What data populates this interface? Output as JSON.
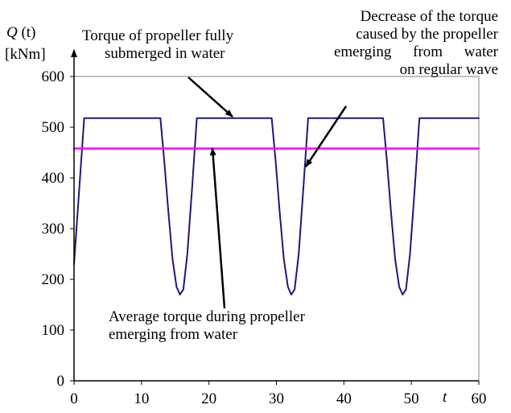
{
  "chart_data": {
    "type": "line",
    "ylabel_symbol": "Q",
    "ylabel_arg": "(t)",
    "ylabel_unit": "[kNm]",
    "xlabel": "t",
    "xlim": [
      0,
      60
    ],
    "ylim": [
      0,
      600
    ],
    "xticks": [
      0,
      10,
      20,
      30,
      40,
      50,
      60
    ],
    "yticks": [
      0,
      100,
      200,
      300,
      400,
      500,
      600
    ],
    "grid": false,
    "series": [
      {
        "color": "#1a1a7a",
        "x": [
          0,
          1.5,
          12.8,
          13.4,
          14.0,
          14.6,
          15.2,
          15.7,
          16.2,
          16.8,
          17.5,
          18.2,
          29.3,
          29.9,
          30.5,
          31.1,
          31.7,
          32.2,
          32.7,
          33.3,
          34.0,
          34.7,
          45.8,
          46.4,
          47.0,
          47.6,
          48.2,
          48.7,
          49.2,
          49.8,
          50.5,
          51.2,
          60
        ],
        "y": [
          230,
          518,
          518,
          430,
          330,
          240,
          185,
          170,
          180,
          250,
          380,
          518,
          518,
          430,
          330,
          240,
          185,
          170,
          180,
          250,
          380,
          518,
          518,
          430,
          330,
          240,
          185,
          170,
          180,
          250,
          380,
          518,
          518
        ]
      },
      {
        "color": "#ff00ff",
        "x": [
          0,
          60
        ],
        "y": [
          458,
          458
        ]
      }
    ],
    "annotations": [
      {
        "lines": [
          "Torque of propeller fully",
          "submerged in water"
        ]
      },
      {
        "lines": [
          "Decrease of the torque",
          "caused by the propeller",
          "emerging from water",
          "on regular wave"
        ]
      },
      {
        "lines": [
          "Average torque during propeller",
          "emerging from water"
        ]
      }
    ]
  }
}
